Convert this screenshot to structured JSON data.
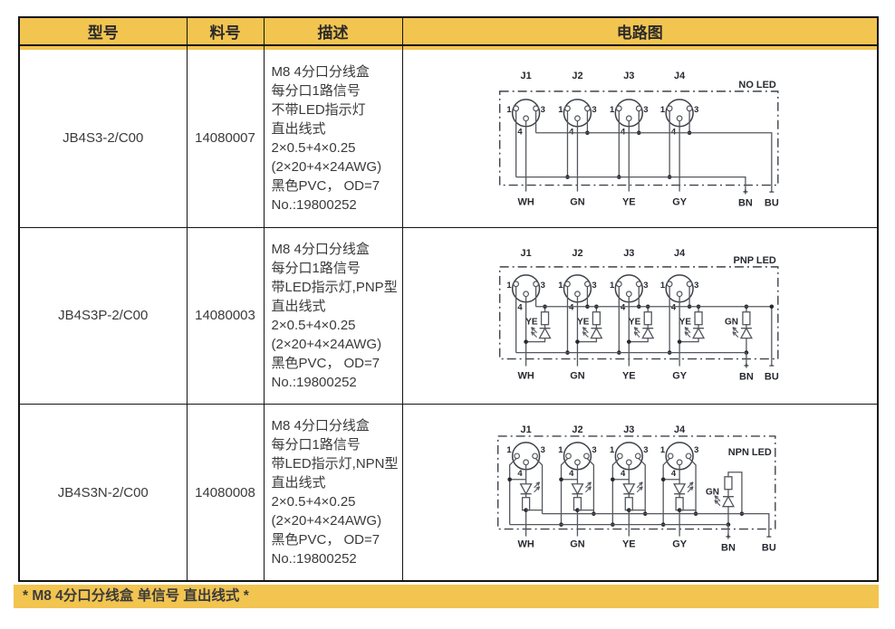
{
  "header": {
    "columns": [
      "型号",
      "料号",
      "描述",
      "电路图"
    ]
  },
  "rows": [
    {
      "model": "JB4S3-2/C00",
      "part": "14080007",
      "description": [
        "M8 4分口分线盒",
        "每分口1路信号",
        "不带LED指示灯",
        "直出线式",
        "2×0.5+4×0.25",
        "(2×20+4×24AWG)",
        "黑色PVC， OD=7",
        "No.:19800252"
      ],
      "circuit": {
        "variant": "no_led",
        "title": "NO LED",
        "ports": [
          "J1",
          "J2",
          "J3",
          "J4"
        ],
        "pins": [
          "1",
          "3",
          "4"
        ],
        "wires": [
          "WH",
          "GN",
          "YE",
          "GY"
        ],
        "power": [
          {
            "sign": "+",
            "label": "BN"
          },
          {
            "sign": "−",
            "label": "BU"
          }
        ]
      }
    },
    {
      "model": "JB4S3P-2/C00",
      "part": "14080003",
      "description": [
        "M8 4分口分线盒",
        "每分口1路信号",
        "带LED指示灯,PNP型",
        "直出线式",
        "2×0.5+4×0.25",
        "(2×20+4×24AWG)",
        "黑色PVC， OD=7",
        "No.:19800252"
      ],
      "circuit": {
        "variant": "pnp",
        "title": "PNP LED",
        "ports": [
          "J1",
          "J2",
          "J3",
          "J4"
        ],
        "pins": [
          "1",
          "3",
          "4"
        ],
        "wires": [
          "WH",
          "GN",
          "YE",
          "GY"
        ],
        "signal_led": "YE",
        "power_led": "GN",
        "power": [
          {
            "sign": "+",
            "label": "BN"
          },
          {
            "sign": "−",
            "label": "BU"
          }
        ]
      }
    },
    {
      "model": "JB4S3N-2/C00",
      "part": "14080008",
      "description": [
        "M8 4分口分线盒",
        "每分口1路信号",
        "带LED指示灯,NPN型",
        "直出线式",
        "2×0.5+4×0.25",
        "(2×20+4×24AWG)",
        "黑色PVC， OD=7",
        "No.:19800252"
      ],
      "circuit": {
        "variant": "npn",
        "title": "NPN LED",
        "ports": [
          "J1",
          "J2",
          "J3",
          "J4"
        ],
        "pins": [
          "1",
          "3",
          "4"
        ],
        "wires": [
          "WH",
          "GN",
          "YE",
          "GY"
        ],
        "signal_led": "YE",
        "power_led": "GN",
        "power": [
          {
            "sign": "+",
            "label": "BN"
          },
          {
            "sign": "−",
            "label": "BU"
          }
        ]
      }
    }
  ],
  "footer": {
    "note": "* M8 4分口分线盒 单信号 直出线式 *"
  },
  "colors": {
    "accent_gold": "#F2C450",
    "table_border": "#141414",
    "wire": "#54575d",
    "circuit_text": "#26292f",
    "body_text": "#3a3a3a"
  }
}
